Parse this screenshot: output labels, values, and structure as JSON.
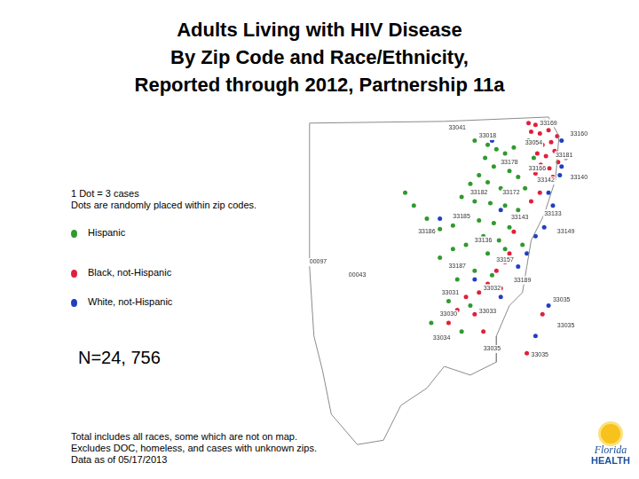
{
  "chart_data": {
    "type": "scatter",
    "title": [
      "Adults Living with HIV Disease",
      "By Zip Code and Race/Ethnicity,",
      "Reported through 2012, Partnership 11a"
    ],
    "notes": [
      "1 Dot = 3 cases",
      "Dots are randomly placed within zip codes."
    ],
    "total": "N=24, 756",
    "footnote": [
      "Total includes all races, some which are not on map.",
      "Excludes DOC, homeless, and cases with unknown zips.",
      "Data as of 05/17/2013"
    ],
    "logo": [
      "Florida",
      "HEALTH"
    ],
    "xlim": [
      0,
      385
    ],
    "ylim": [
      0,
      390
    ],
    "tick_labels": false,
    "grid": false,
    "boundary": [
      [
        10,
        380
      ],
      [
        165,
        382
      ],
      [
        285,
        387
      ],
      [
        297,
        365
      ],
      [
        293,
        315
      ],
      [
        280,
        275
      ],
      [
        265,
        245
      ],
      [
        260,
        215
      ],
      [
        255,
        185
      ],
      [
        240,
        170
      ],
      [
        225,
        135
      ],
      [
        225,
        105
      ],
      [
        195,
        90
      ],
      [
        165,
        100
      ],
      [
        145,
        75
      ],
      [
        115,
        55
      ],
      [
        95,
        15
      ],
      [
        65,
        10
      ],
      [
        35,
        45
      ],
      [
        25,
        95
      ],
      [
        15,
        135
      ],
      [
        10,
        215
      ],
      [
        10,
        380
      ]
    ],
    "annotations": [
      {
        "text": "33041",
        "x": 170,
        "y": 375
      },
      {
        "text": "33018",
        "x": 205,
        "y": 365
      },
      {
        "text": "33169",
        "x": 275,
        "y": 380
      },
      {
        "text": "33160",
        "x": 310,
        "y": 367
      },
      {
        "text": "33054",
        "x": 258,
        "y": 357
      },
      {
        "text": "33181",
        "x": 293,
        "y": 343
      },
      {
        "text": "33178",
        "x": 230,
        "y": 335
      },
      {
        "text": "33166",
        "x": 262,
        "y": 328
      },
      {
        "text": "33142",
        "x": 272,
        "y": 314
      },
      {
        "text": "33140",
        "x": 310,
        "y": 317
      },
      {
        "text": "33182",
        "x": 195,
        "y": 300
      },
      {
        "text": "33172",
        "x": 232,
        "y": 300
      },
      {
        "text": "33185",
        "x": 175,
        "y": 273
      },
      {
        "text": "33143",
        "x": 242,
        "y": 272
      },
      {
        "text": "33133",
        "x": 280,
        "y": 276
      },
      {
        "text": "33149",
        "x": 295,
        "y": 255
      },
      {
        "text": "33186",
        "x": 135,
        "y": 255
      },
      {
        "text": "33136",
        "x": 200,
        "y": 245
      },
      {
        "text": "00097",
        "x": 10,
        "y": 220
      },
      {
        "text": "33187",
        "x": 170,
        "y": 215
      },
      {
        "text": "33157",
        "x": 225,
        "y": 223
      },
      {
        "text": "00043",
        "x": 55,
        "y": 205
      },
      {
        "text": "33189",
        "x": 245,
        "y": 199
      },
      {
        "text": "33032",
        "x": 210,
        "y": 190
      },
      {
        "text": "33031",
        "x": 162,
        "y": 185
      },
      {
        "text": "33035",
        "x": 290,
        "y": 177
      },
      {
        "text": "33030",
        "x": 160,
        "y": 160
      },
      {
        "text": "33033",
        "x": 205,
        "y": 163
      },
      {
        "text": "33034",
        "x": 152,
        "y": 133
      },
      {
        "text": "33035",
        "x": 210,
        "y": 120
      },
      {
        "text": "33035",
        "x": 295,
        "y": 147
      },
      {
        "text": "33035",
        "x": 265,
        "y": 113
      }
    ],
    "series": [
      {
        "name": "Hispanic",
        "color": "#2f9a2f",
        "marker": "circle",
        "values": [
          [
            200,
            360
          ],
          [
            215,
            355
          ],
          [
            225,
            350
          ],
          [
            235,
            345
          ],
          [
            245,
            352
          ],
          [
            212,
            340
          ],
          [
            222,
            330
          ],
          [
            240,
            325
          ],
          [
            250,
            318
          ],
          [
            205,
            320
          ],
          [
            195,
            310
          ],
          [
            215,
            312
          ],
          [
            230,
            305
          ],
          [
            245,
            300
          ],
          [
            258,
            305
          ],
          [
            185,
            295
          ],
          [
            200,
            290
          ],
          [
            218,
            288
          ],
          [
            235,
            285
          ],
          [
            250,
            280
          ],
          [
            190,
            275
          ],
          [
            205,
            268
          ],
          [
            222,
            265
          ],
          [
            240,
            260
          ],
          [
            175,
            262
          ],
          [
            160,
            258
          ],
          [
            145,
            270
          ],
          [
            130,
            285
          ],
          [
            120,
            300
          ],
          [
            210,
            250
          ],
          [
            228,
            245
          ],
          [
            190,
            240
          ],
          [
            175,
            235
          ],
          [
            160,
            225
          ],
          [
            215,
            230
          ],
          [
            235,
            235
          ],
          [
            255,
            240
          ],
          [
            200,
            210
          ],
          [
            180,
            200
          ],
          [
            220,
            205
          ],
          [
            170,
            175
          ],
          [
            195,
            170
          ],
          [
            150,
            150
          ],
          [
            185,
            140
          ],
          [
            262,
            360
          ],
          [
            268,
            340
          ]
        ]
      },
      {
        "name": "Black, not-Hispanic",
        "color": "#e0203a",
        "marker": "circle",
        "values": [
          [
            262,
            380
          ],
          [
            270,
            378
          ],
          [
            280,
            382
          ],
          [
            290,
            380
          ],
          [
            265,
            370
          ],
          [
            275,
            368
          ],
          [
            285,
            372
          ],
          [
            295,
            365
          ],
          [
            268,
            358
          ],
          [
            278,
            355
          ],
          [
            288,
            358
          ],
          [
            272,
            345
          ],
          [
            282,
            342
          ],
          [
            292,
            348
          ],
          [
            276,
            332
          ],
          [
            286,
            328
          ],
          [
            296,
            335
          ],
          [
            270,
            322
          ],
          [
            280,
            315
          ],
          [
            290,
            318
          ],
          [
            275,
            300
          ],
          [
            265,
            290
          ],
          [
            255,
            270
          ],
          [
            245,
            255
          ],
          [
            235,
            220
          ],
          [
            225,
            210
          ],
          [
            215,
            195
          ],
          [
            205,
            185
          ],
          [
            190,
            180
          ],
          [
            180,
            165
          ],
          [
            200,
            160
          ],
          [
            170,
            150
          ],
          [
            210,
            140
          ],
          [
            160,
            135
          ],
          [
            230,
            190
          ],
          [
            240,
            230
          ],
          [
            278,
            160
          ],
          [
            260,
            115
          ]
        ]
      },
      {
        "name": "White, not-Hispanic",
        "color": "#2040c0",
        "marker": "circle",
        "values": [
          [
            300,
            360
          ],
          [
            305,
            340
          ],
          [
            298,
            320
          ],
          [
            285,
            300
          ],
          [
            290,
            285
          ],
          [
            280,
            260
          ],
          [
            270,
            250
          ],
          [
            260,
            230
          ],
          [
            250,
            215
          ],
          [
            230,
            180
          ],
          [
            200,
            200
          ],
          [
            160,
            270
          ],
          [
            230,
            280
          ],
          [
            300,
            330
          ],
          [
            220,
            360
          ],
          [
            285,
            170
          ],
          [
            270,
            135
          ]
        ]
      }
    ]
  }
}
